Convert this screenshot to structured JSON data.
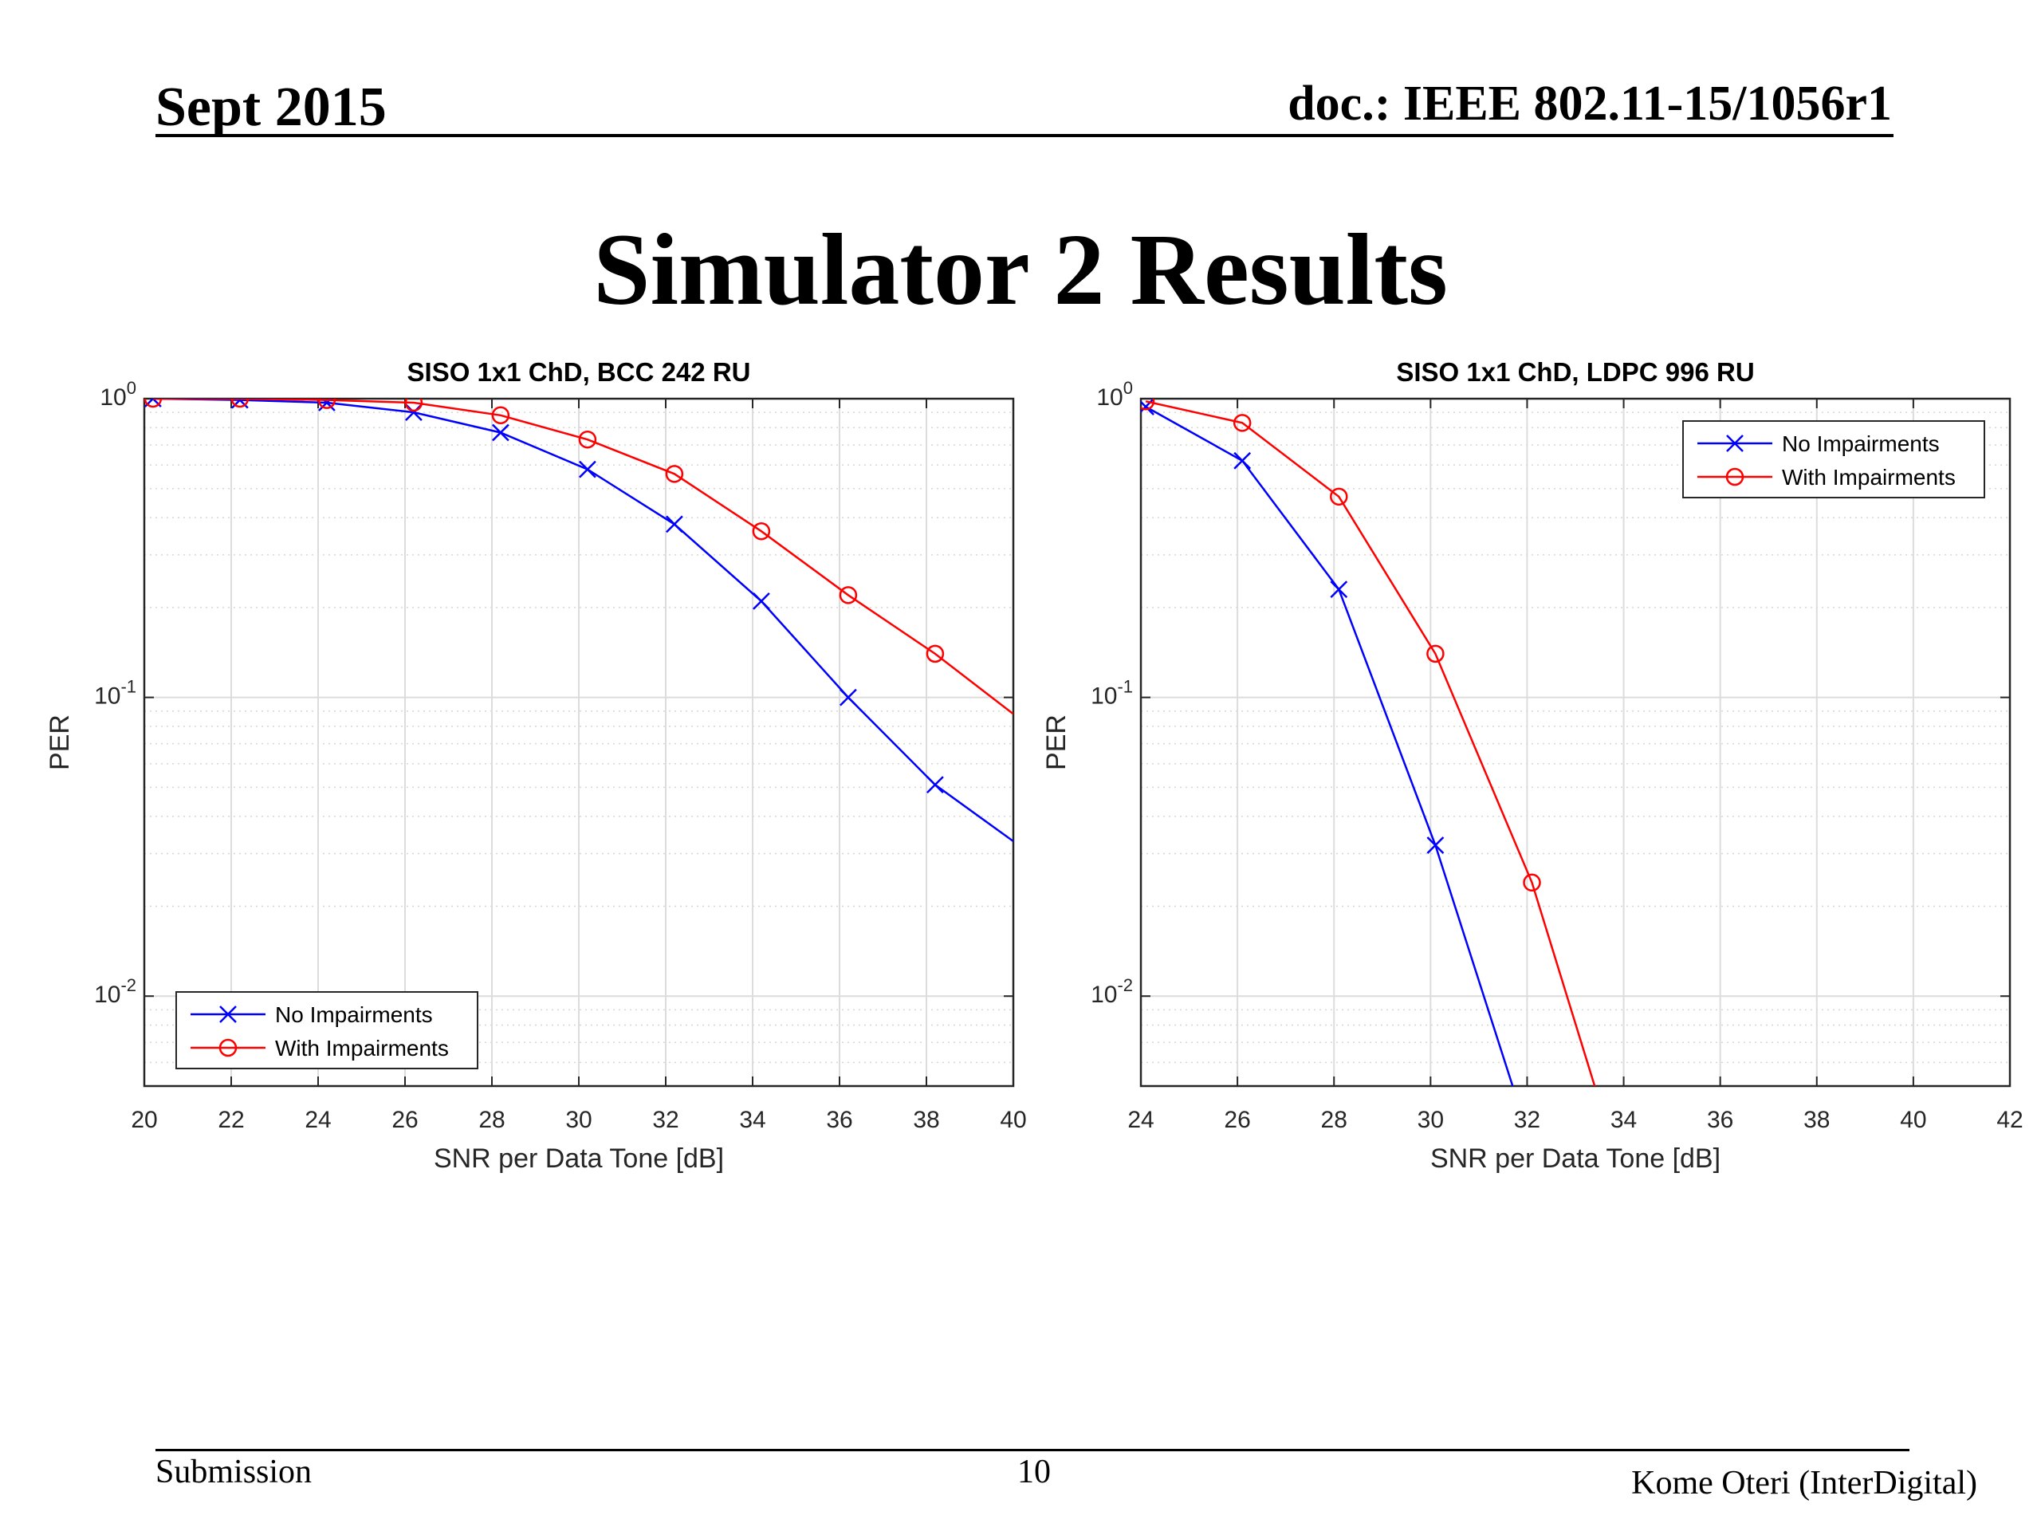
{
  "header": {
    "left": "Sept 2015",
    "right": "doc.: IEEE 802.11-15/1056r1"
  },
  "slide_title": "Simulator 2 Results",
  "footer": {
    "left": "Submission",
    "page": "10",
    "right": "Kome Oteri (InterDigital)"
  },
  "colors": {
    "no_impairments": "#0000ff",
    "with_impairments": "#ff0000"
  },
  "chart_data": [
    {
      "type": "line",
      "title": "SISO 1x1 ChD, BCC 242 RU",
      "xlabel": "SNR per Data Tone [dB]",
      "ylabel": "PER",
      "yscale": "log",
      "xlim": [
        20,
        40
      ],
      "ylim": [
        0.005,
        1
      ],
      "xticks": [
        20,
        22,
        24,
        26,
        28,
        30,
        32,
        34,
        36,
        38,
        40
      ],
      "yticks": [
        0.01,
        0.1,
        1
      ],
      "ytick_labels": [
        {
          "base": "10",
          "exp": "-2"
        },
        {
          "base": "10",
          "exp": "-1"
        },
        {
          "base": "10",
          "exp": "0"
        }
      ],
      "grid": true,
      "legend_position": "bottom-left",
      "series": [
        {
          "name": "No Impairments",
          "marker": "x",
          "color": "#0000ff",
          "x": [
            20.2,
            22.2,
            24.2,
            26.2,
            28.2,
            30.2,
            32.2,
            34.2,
            36.2,
            38.2,
            40
          ],
          "y": [
            1.0,
            0.99,
            0.97,
            0.9,
            0.77,
            0.58,
            0.38,
            0.21,
            0.1,
            0.051,
            0.033
          ],
          "marker_count": 10
        },
        {
          "name": "With Impairments",
          "marker": "o",
          "color": "#ff0000",
          "x": [
            20.2,
            22.2,
            24.2,
            26.2,
            28.2,
            30.2,
            32.2,
            34.2,
            36.2,
            38.2,
            40
          ],
          "y": [
            1.0,
            1.0,
            0.99,
            0.97,
            0.88,
            0.73,
            0.56,
            0.36,
            0.22,
            0.14,
            0.088
          ],
          "marker_count": 10
        }
      ]
    },
    {
      "type": "line",
      "title": "SISO 1x1 ChD, LDPC 996 RU",
      "xlabel": "SNR per Data Tone [dB]",
      "ylabel": "PER",
      "yscale": "log",
      "xlim": [
        24,
        42
      ],
      "ylim": [
        0.005,
        1
      ],
      "xticks": [
        24,
        26,
        28,
        30,
        32,
        34,
        36,
        38,
        40,
        42
      ],
      "yticks": [
        0.01,
        0.1,
        1
      ],
      "ytick_labels": [
        {
          "base": "10",
          "exp": "-2"
        },
        {
          "base": "10",
          "exp": "-1"
        },
        {
          "base": "10",
          "exp": "0"
        }
      ],
      "grid": true,
      "legend_position": "top-right",
      "series": [
        {
          "name": "No Impairments",
          "marker": "x",
          "color": "#0000ff",
          "x": [
            24.1,
            26.1,
            28.1,
            30.1,
            31.7
          ],
          "y": [
            0.94,
            0.62,
            0.23,
            0.032,
            0.005
          ],
          "marker_count": 4
        },
        {
          "name": "With Impairments",
          "marker": "o",
          "color": "#ff0000",
          "x": [
            24.1,
            26.1,
            28.1,
            30.1,
            32.1,
            33.4
          ],
          "y": [
            0.98,
            0.83,
            0.47,
            0.14,
            0.024,
            0.005
          ],
          "marker_count": 5
        }
      ]
    }
  ]
}
